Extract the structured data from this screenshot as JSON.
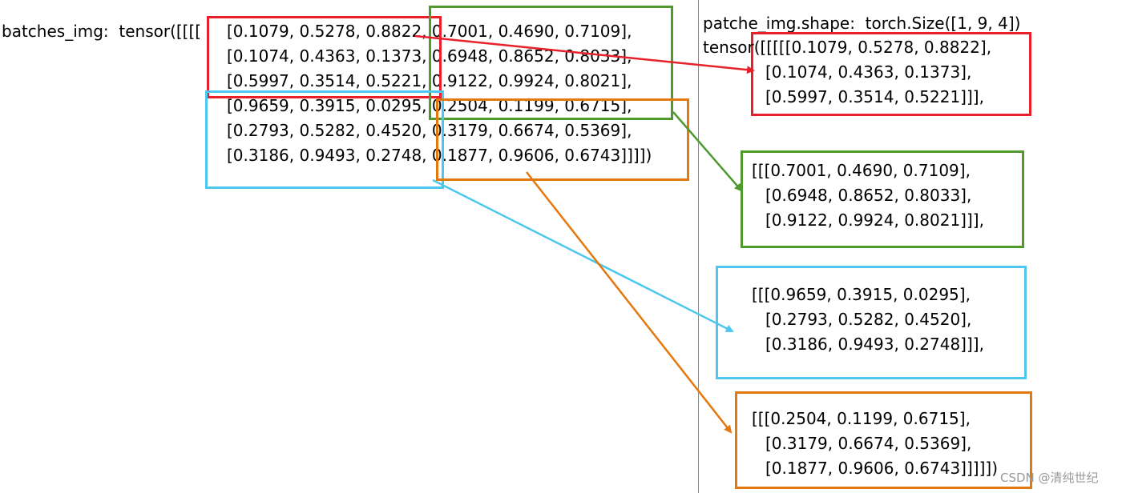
{
  "left": {
    "label": "batches_img:  tensor([[[[",
    "rows": [
      "[0.1079, 0.5278, 0.8822, 0.7001, 0.4690, 0.7109],",
      "[0.1074, 0.4363, 0.1373, 0.6948, 0.8652, 0.8033],",
      "[0.5997, 0.3514, 0.5221, 0.9122, 0.9924, 0.8021],",
      "[0.9659, 0.3915, 0.0295, 0.2504, 0.1199, 0.6715],",
      "[0.2793, 0.5282, 0.4520, 0.3179, 0.6674, 0.5369],",
      "[0.3186, 0.9493, 0.2748, 0.1877, 0.9606, 0.6743]]]])"
    ]
  },
  "right": {
    "shape_line": "patche_img.shape:  torch.Size([1, 9, 4])",
    "patches": [
      {
        "color": "#e8202a",
        "lines": [
          "tensor([[[[[0.1079, 0.5278, 0.8822],",
          "[0.1074, 0.4363, 0.1373],",
          "[0.5997, 0.3514, 0.5221]]],"
        ]
      },
      {
        "color": "#4e9a2c",
        "lines": [
          "[[[0.7001, 0.4690, 0.7109],",
          "[0.6948, 0.8652, 0.8033],",
          "[0.9122, 0.9924, 0.8021]]],"
        ]
      },
      {
        "color": "#4ec7f0",
        "lines": [
          "[[[0.9659, 0.3915, 0.0295],",
          "[0.2793, 0.5282, 0.4520],",
          "[0.3186, 0.9493, 0.2748]]],"
        ]
      },
      {
        "color": "#e3780e",
        "lines": [
          "[[[0.2504, 0.1199, 0.6715],",
          "[0.3179, 0.6674, 0.5369],",
          "[0.1877, 0.9606, 0.6743]]]]])"
        ]
      }
    ]
  },
  "colors": {
    "red": "#e8202a",
    "green": "#4e9a2c",
    "cyan": "#4ec7f0",
    "orange": "#e3780e",
    "divider": "#888888"
  },
  "watermark": "CSDN @清纯世纪"
}
